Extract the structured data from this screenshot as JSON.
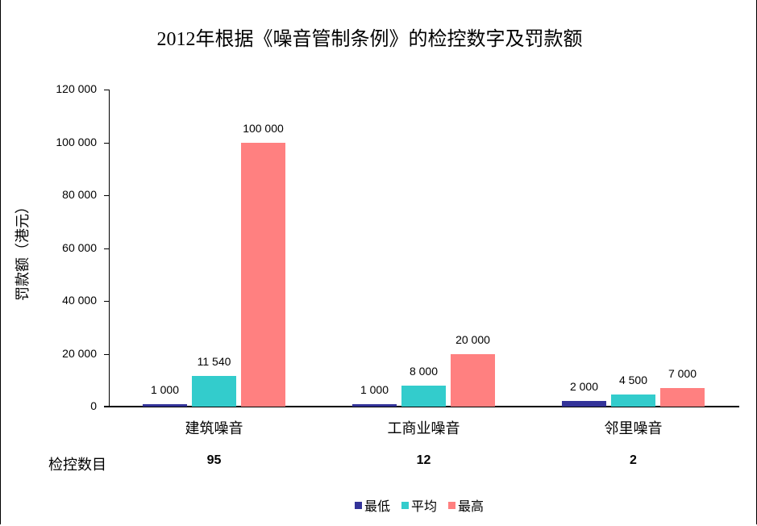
{
  "chart_data": {
    "type": "bar",
    "title": "2012年根据《噪音管制条例》的检控数字及罚款额",
    "xlabel": "",
    "ylabel": "罚款额（港元）",
    "ylim": [
      0,
      120000
    ],
    "yticks": [
      "0",
      "20 000",
      "40 000",
      "60 000",
      "80 000",
      "100 000",
      "120 000"
    ],
    "categories": [
      "建筑噪音",
      "工商业噪音",
      "邻里噪音"
    ],
    "series": [
      {
        "name": "最低",
        "color": "#333399",
        "values": [
          1000,
          1000,
          2000
        ],
        "labels": [
          "1 000",
          "1 000",
          "2 000"
        ]
      },
      {
        "name": "平均",
        "color": "#33CCCC",
        "values": [
          11540,
          8000,
          4500
        ],
        "labels": [
          "11 540",
          "8 000",
          "4 500"
        ]
      },
      {
        "name": "最高",
        "color": "#FF8080",
        "values": [
          100000,
          20000,
          7000
        ],
        "labels": [
          "100 000",
          "20 000",
          "7 000"
        ]
      }
    ],
    "grid": false,
    "legend_position": "bottom",
    "table_row": {
      "label": "检控数目",
      "values": [
        "95",
        "12",
        "2"
      ]
    }
  }
}
